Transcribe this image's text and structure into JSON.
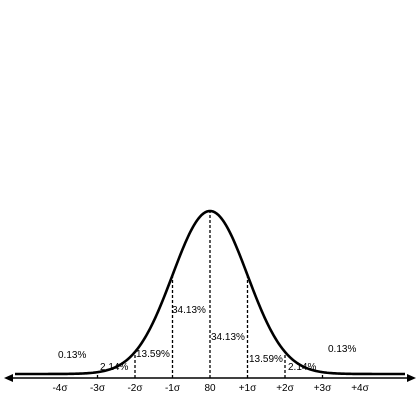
{
  "chart_data": {
    "type": "area",
    "description_kind": "normal-distribution",
    "mean_label": "80",
    "x_domain": [
      -5.2,
      5.2
    ],
    "ticks": [
      {
        "x": -4,
        "label": "-4σ"
      },
      {
        "x": -3,
        "label": "-3σ"
      },
      {
        "x": -2,
        "label": "-2σ"
      },
      {
        "x": -1,
        "label": "-1σ"
      },
      {
        "x": 0,
        "label": "80"
      },
      {
        "x": 1,
        "label": "+1σ"
      },
      {
        "x": 2,
        "label": "+2σ"
      },
      {
        "x": 3,
        "label": "+3σ"
      },
      {
        "x": 4,
        "label": "+4σ"
      }
    ],
    "dividers": [
      -3,
      -2,
      -1,
      0,
      1,
      2,
      3
    ],
    "regions": [
      {
        "from": null,
        "to": -3,
        "percent": "0.13%"
      },
      {
        "from": -3,
        "to": -2,
        "percent": "2.14%"
      },
      {
        "from": -2,
        "to": -1,
        "percent": "13.59%"
      },
      {
        "from": -1,
        "to": 0,
        "percent": "34.13%"
      },
      {
        "from": 0,
        "to": 1,
        "percent": "34.13%"
      },
      {
        "from": 1,
        "to": 2,
        "percent": "13.59%"
      },
      {
        "from": 2,
        "to": 3,
        "percent": "2.14%"
      },
      {
        "from": 3,
        "to": null,
        "percent": "0.13%"
      }
    ]
  }
}
